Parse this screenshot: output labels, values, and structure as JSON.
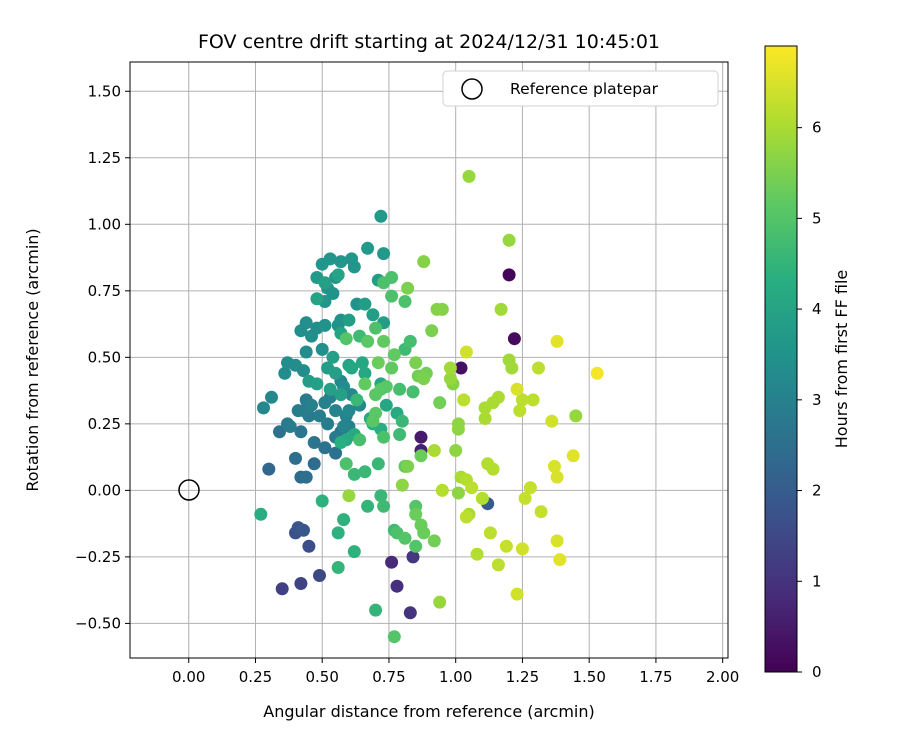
{
  "chart_data": {
    "type": "scatter",
    "title": "FOV centre drift starting at 2024/12/31 10:45:01",
    "xlabel": "Angular distance from reference (arcmin)",
    "ylabel": "Rotation from reference (arcmin)",
    "xlim": [
      -0.22,
      2.02
    ],
    "ylim": [
      -0.63,
      1.61
    ],
    "xticks": [
      "0.00",
      "0.25",
      "0.50",
      "0.75",
      "1.00",
      "1.25",
      "1.50",
      "1.75",
      "2.00"
    ],
    "yticks": [
      "−0.50",
      "−0.25",
      "0.00",
      "0.25",
      "0.50",
      "0.75",
      "1.00",
      "1.25",
      "1.50"
    ],
    "grid": true,
    "legend": {
      "placement": "upper right",
      "entries": [
        "Reference platepar"
      ]
    },
    "reference_point": {
      "x": 0.0,
      "y": 0.0
    },
    "colorbar": {
      "label": "Hours from first FF file",
      "min": 0,
      "max": 6.9,
      "ticks": [
        "0",
        "1",
        "2",
        "3",
        "4",
        "5",
        "6"
      ],
      "colormap": "viridis"
    },
    "points": [
      [
        1.2,
        0.81,
        0.1
      ],
      [
        1.22,
        0.57,
        0.2
      ],
      [
        1.02,
        0.46,
        0.3
      ],
      [
        0.87,
        0.2,
        0.5
      ],
      [
        0.87,
        0.15,
        0.6
      ],
      [
        0.76,
        -0.27,
        0.8
      ],
      [
        0.78,
        -0.36,
        0.9
      ],
      [
        0.83,
        -0.46,
        1.0
      ],
      [
        0.84,
        -0.25,
        1.1
      ],
      [
        0.35,
        -0.37,
        1.3
      ],
      [
        0.42,
        -0.35,
        1.4
      ],
      [
        0.49,
        -0.32,
        1.5
      ],
      [
        0.45,
        -0.21,
        1.6
      ],
      [
        0.4,
        -0.16,
        1.7
      ],
      [
        0.41,
        -0.14,
        1.8
      ],
      [
        0.43,
        -0.15,
        1.9
      ],
      [
        1.12,
        -0.05,
        2.0
      ],
      [
        0.3,
        0.08,
        2.3
      ],
      [
        0.42,
        0.05,
        2.4
      ],
      [
        0.47,
        0.1,
        2.4
      ],
      [
        0.4,
        0.12,
        2.5
      ],
      [
        0.44,
        0.05,
        2.5
      ],
      [
        0.51,
        0.16,
        2.6
      ],
      [
        0.55,
        0.14,
        2.6
      ],
      [
        0.34,
        0.22,
        2.6
      ],
      [
        0.42,
        0.22,
        2.7
      ],
      [
        0.57,
        0.22,
        2.7
      ],
      [
        0.55,
        0.2,
        2.8
      ],
      [
        0.37,
        0.25,
        2.8
      ],
      [
        0.45,
        0.28,
        2.8
      ],
      [
        0.49,
        0.28,
        2.9
      ],
      [
        0.41,
        0.3,
        2.9
      ],
      [
        0.43,
        0.3,
        2.9
      ],
      [
        0.46,
        0.32,
        3.0
      ],
      [
        0.51,
        0.33,
        3.0
      ],
      [
        0.53,
        0.35,
        3.0
      ],
      [
        0.55,
        0.3,
        3.1
      ],
      [
        0.58,
        0.24,
        3.1
      ],
      [
        0.59,
        0.28,
        3.1
      ],
      [
        0.57,
        0.41,
        3.1
      ],
      [
        0.6,
        0.3,
        3.2
      ],
      [
        0.64,
        0.32,
        3.2
      ],
      [
        0.61,
        0.36,
        3.2
      ],
      [
        0.28,
        0.31,
        3.2
      ],
      [
        0.31,
        0.35,
        3.2
      ],
      [
        0.36,
        0.44,
        3.3
      ],
      [
        0.37,
        0.48,
        3.3
      ],
      [
        0.4,
        0.47,
        3.3
      ],
      [
        0.43,
        0.45,
        3.3
      ],
      [
        0.44,
        0.52,
        3.3
      ],
      [
        0.5,
        0.53,
        3.4
      ],
      [
        0.46,
        0.58,
        3.4
      ],
      [
        0.48,
        0.61,
        3.4
      ],
      [
        0.44,
        0.63,
        3.4
      ],
      [
        0.42,
        0.6,
        3.4
      ],
      [
        0.51,
        0.62,
        3.5
      ],
      [
        0.56,
        0.62,
        3.5
      ],
      [
        0.57,
        0.64,
        3.5
      ],
      [
        0.63,
        0.7,
        3.5
      ],
      [
        0.52,
        0.76,
        3.5
      ],
      [
        0.54,
        0.74,
        3.5
      ],
      [
        0.55,
        0.8,
        3.6
      ],
      [
        0.5,
        0.85,
        3.6
      ],
      [
        0.53,
        0.87,
        3.6
      ],
      [
        0.57,
        0.86,
        3.6
      ],
      [
        0.61,
        0.87,
        3.6
      ],
      [
        0.62,
        0.84,
        3.6
      ],
      [
        0.67,
        0.91,
        3.7
      ],
      [
        0.73,
        0.89,
        3.7
      ],
      [
        0.72,
        1.03,
        3.7
      ],
      [
        0.71,
        0.79,
        3.8
      ],
      [
        0.6,
        0.64,
        3.8
      ],
      [
        0.66,
        0.7,
        3.8
      ],
      [
        0.69,
        0.66,
        3.8
      ],
      [
        0.73,
        0.63,
        3.8
      ],
      [
        0.52,
        0.46,
        3.8
      ],
      [
        0.55,
        0.44,
        3.9
      ],
      [
        0.48,
        0.4,
        3.9
      ],
      [
        0.53,
        0.38,
        3.9
      ],
      [
        0.57,
        0.36,
        3.9
      ],
      [
        0.51,
        0.78,
        3.9
      ],
      [
        0.56,
        0.81,
        4.0
      ],
      [
        0.48,
        0.72,
        4.0
      ],
      [
        0.57,
        0.59,
        4.0
      ],
      [
        0.6,
        0.47,
        4.0
      ],
      [
        0.61,
        0.46,
        4.1
      ],
      [
        0.65,
        0.48,
        4.1
      ],
      [
        0.66,
        0.44,
        4.1
      ],
      [
        0.72,
        0.4,
        4.1
      ],
      [
        0.74,
        0.32,
        4.1
      ],
      [
        0.78,
        0.29,
        4.2
      ],
      [
        0.68,
        0.27,
        4.2
      ],
      [
        0.62,
        0.21,
        4.2
      ],
      [
        0.59,
        0.19,
        4.2
      ],
      [
        0.57,
        0.18,
        4.3
      ],
      [
        0.69,
        0.25,
        4.3
      ],
      [
        0.72,
        0.23,
        4.3
      ],
      [
        0.27,
        -0.09,
        4.3
      ],
      [
        0.5,
        -0.04,
        4.4
      ],
      [
        0.56,
        -0.16,
        4.4
      ],
      [
        0.58,
        -0.11,
        4.4
      ],
      [
        0.62,
        -0.23,
        4.4
      ],
      [
        0.56,
        -0.29,
        4.5
      ],
      [
        0.7,
        -0.45,
        4.5
      ],
      [
        0.67,
        -0.06,
        4.5
      ],
      [
        0.62,
        0.06,
        4.6
      ],
      [
        0.66,
        0.07,
        4.6
      ],
      [
        0.71,
        0.1,
        4.6
      ],
      [
        0.72,
        -0.02,
        4.6
      ],
      [
        0.73,
        -0.06,
        4.7
      ],
      [
        0.77,
        -0.15,
        4.7
      ],
      [
        0.79,
        0.21,
        4.7
      ],
      [
        0.81,
        0.53,
        4.7
      ],
      [
        0.83,
        0.56,
        4.8
      ],
      [
        0.84,
        0.37,
        4.8
      ],
      [
        0.79,
        0.38,
        4.8
      ],
      [
        0.76,
        0.73,
        4.9
      ],
      [
        0.76,
        0.8,
        4.9
      ],
      [
        0.81,
        0.71,
        4.9
      ],
      [
        0.73,
        0.78,
        4.9
      ],
      [
        0.73,
        0.2,
        4.9
      ],
      [
        0.81,
        -0.18,
        5.0
      ],
      [
        0.85,
        -0.21,
        5.0
      ],
      [
        0.77,
        -0.55,
        5.0
      ],
      [
        0.59,
        0.57,
        5.0
      ],
      [
        0.72,
        0.38,
        5.1
      ],
      [
        0.74,
        0.39,
        5.1
      ],
      [
        0.7,
        0.36,
        5.1
      ],
      [
        0.69,
        0.26,
        5.1
      ],
      [
        0.7,
        0.29,
        5.1
      ],
      [
        0.76,
        0.46,
        5.2
      ],
      [
        0.73,
        0.56,
        5.2
      ],
      [
        0.77,
        0.51,
        5.2
      ],
      [
        0.81,
        0.09,
        5.2
      ],
      [
        0.87,
        0.13,
        5.3
      ],
      [
        0.85,
        -0.09,
        5.3
      ],
      [
        0.87,
        -0.13,
        5.3
      ],
      [
        0.88,
        -0.16,
        5.3
      ],
      [
        0.92,
        -0.19,
        5.4
      ],
      [
        0.94,
        0.33,
        5.4
      ],
      [
        0.89,
        0.44,
        5.4
      ],
      [
        0.86,
        0.43,
        5.4
      ],
      [
        0.88,
        0.42,
        5.5
      ],
      [
        0.85,
        0.48,
        5.5
      ],
      [
        0.91,
        0.6,
        5.5
      ],
      [
        0.82,
        0.76,
        5.5
      ],
      [
        0.88,
        0.86,
        5.6
      ],
      [
        0.95,
        0.68,
        5.6
      ],
      [
        0.93,
        0.68,
        5.6
      ],
      [
        0.99,
        0.4,
        5.6
      ],
      [
        1.01,
        0.25,
        5.7
      ],
      [
        1.01,
        0.23,
        5.7
      ],
      [
        1.0,
        0.15,
        5.7
      ],
      [
        1.01,
        -0.01,
        5.7
      ],
      [
        0.94,
        -0.42,
        5.8
      ],
      [
        1.05,
        1.18,
        5.8
      ],
      [
        1.2,
        0.94,
        5.8
      ],
      [
        1.17,
        0.68,
        5.9
      ],
      [
        1.2,
        0.49,
        5.9
      ],
      [
        1.21,
        0.46,
        5.9
      ],
      [
        1.11,
        0.27,
        6.0
      ],
      [
        1.14,
        0.33,
        6.0
      ],
      [
        1.16,
        0.35,
        6.0
      ],
      [
        1.11,
        0.31,
        6.0
      ],
      [
        1.12,
        0.1,
        6.1
      ],
      [
        1.14,
        0.08,
        6.1
      ],
      [
        1.1,
        -0.03,
        6.1
      ],
      [
        1.08,
        -0.24,
        6.1
      ],
      [
        1.13,
        -0.16,
        6.2
      ],
      [
        1.16,
        -0.28,
        6.2
      ],
      [
        1.24,
        0.3,
        6.2
      ],
      [
        1.25,
        0.34,
        6.2
      ],
      [
        1.29,
        0.34,
        6.2
      ],
      [
        1.26,
        -0.03,
        6.3
      ],
      [
        1.28,
        0.01,
        6.3
      ],
      [
        1.32,
        -0.08,
        6.3
      ],
      [
        1.19,
        -0.21,
        6.3
      ],
      [
        1.25,
        -0.22,
        6.4
      ],
      [
        1.23,
        -0.39,
        6.4
      ],
      [
        1.31,
        0.46,
        6.2
      ],
      [
        1.36,
        0.26,
        6.4
      ],
      [
        1.37,
        0.09,
        6.5
      ],
      [
        1.38,
        0.05,
        6.5
      ],
      [
        1.38,
        -0.19,
        6.5
      ],
      [
        1.39,
        -0.26,
        6.6
      ],
      [
        1.44,
        0.13,
        6.6
      ],
      [
        1.38,
        0.56,
        6.6
      ],
      [
        1.45,
        0.28,
        5.8
      ],
      [
        1.53,
        0.44,
        6.8
      ],
      [
        1.23,
        0.38,
        6.5
      ],
      [
        1.04,
        0.52,
        6.4
      ],
      [
        1.03,
        0.34,
        6.2
      ],
      [
        1.04,
        0.04,
        6.1
      ],
      [
        1.05,
        -0.09,
        6.0
      ],
      [
        1.04,
        -0.1,
        6.2
      ],
      [
        1.06,
        0.01,
        6.2
      ],
      [
        1.02,
        0.05,
        6.0
      ],
      [
        0.98,
        0.46,
        5.9
      ],
      [
        0.98,
        0.42,
        5.8
      ],
      [
        0.95,
        0.0,
        6.1
      ],
      [
        0.92,
        0.15,
        6.0
      ],
      [
        0.8,
        0.02,
        5.7
      ],
      [
        0.78,
        -0.16,
        4.9
      ],
      [
        0.85,
        -0.06,
        5.0
      ],
      [
        0.6,
        -0.02,
        5.8
      ],
      [
        0.59,
        0.1,
        4.9
      ],
      [
        0.64,
        0.19,
        4.8
      ],
      [
        0.66,
        0.4,
        5.2
      ],
      [
        0.64,
        0.58,
        4.7
      ],
      [
        0.63,
        0.34,
        4.6
      ],
      [
        0.7,
        0.61,
        4.9
      ],
      [
        0.67,
        0.56,
        5.1
      ],
      [
        0.71,
        0.48,
        5.3
      ],
      [
        0.8,
        0.26,
        4.6
      ],
      [
        0.82,
        0.09,
        5.5
      ],
      [
        0.48,
        0.8,
        3.7
      ],
      [
        0.51,
        0.71,
        3.6
      ],
      [
        0.45,
        0.41,
        3.8
      ],
      [
        0.54,
        0.5,
        3.9
      ],
      [
        0.58,
        0.39,
        3.3
      ],
      [
        0.6,
        0.24,
        3.0
      ],
      [
        0.52,
        0.25,
        2.9
      ],
      [
        0.47,
        0.18,
        2.7
      ],
      [
        0.44,
        0.34,
        2.8
      ],
      [
        0.38,
        0.24,
        2.9
      ]
    ]
  }
}
